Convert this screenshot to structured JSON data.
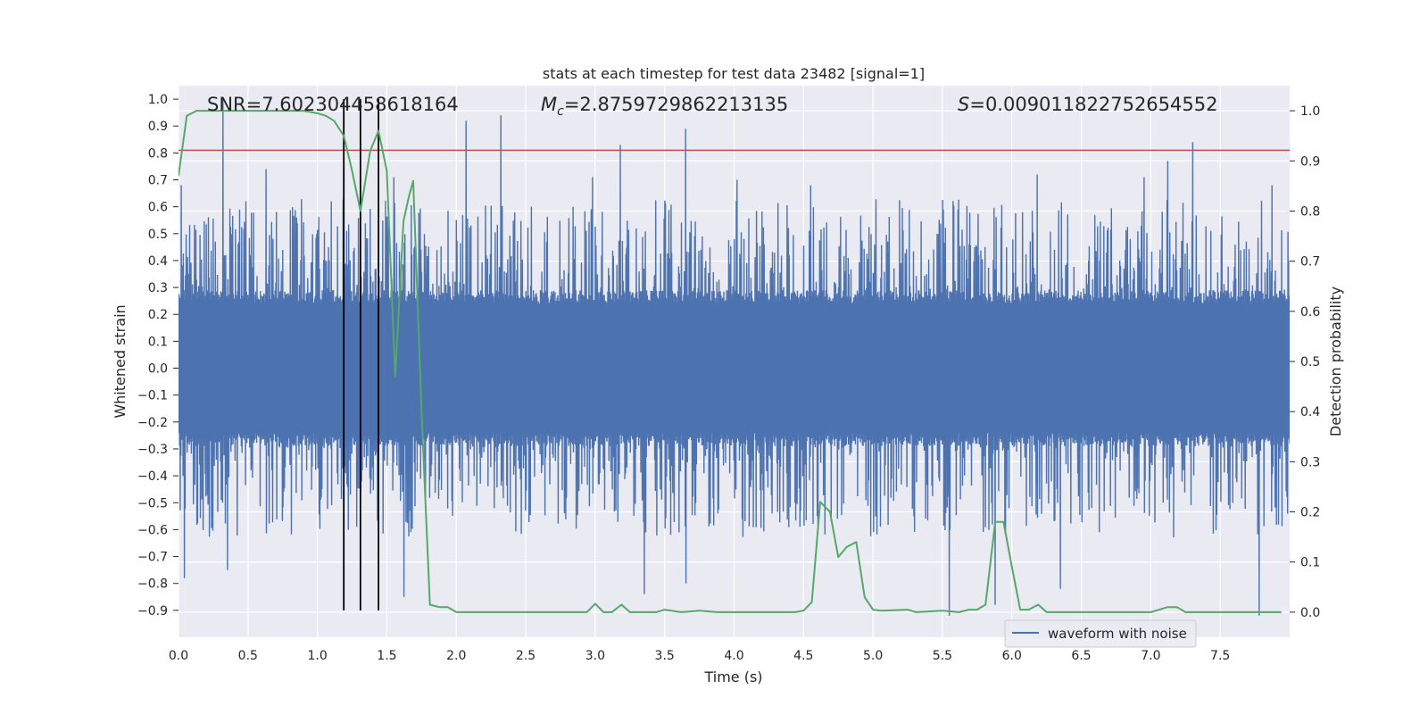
{
  "chart_data": {
    "type": "line",
    "title": "stats at each timestep for test data 23482 [signal=1]",
    "xlabel": "Time (s)",
    "ylabel": "Whitened strain",
    "ylabel_right": "Detection probability",
    "xlim": [
      0,
      8
    ],
    "ylim": [
      -1.0,
      1.05
    ],
    "ylim_right": [
      -0.05,
      1.05
    ],
    "x_ticks": [
      0.0,
      0.5,
      1.0,
      1.5,
      2.0,
      2.5,
      3.0,
      3.5,
      4.0,
      4.5,
      5.0,
      5.5,
      6.0,
      6.5,
      7.0,
      7.5
    ],
    "x_tick_labels": [
      "0.0",
      "0.5",
      "1.0",
      "1.5",
      "2.0",
      "2.5",
      "3.0",
      "3.5",
      "4.0",
      "4.5",
      "5.0",
      "5.5",
      "6.0",
      "6.5",
      "7.0",
      "7.5"
    ],
    "y_ticks": [
      1.0,
      0.9,
      0.8,
      0.7,
      0.6,
      0.5,
      0.4,
      0.3,
      0.2,
      0.1,
      0.0,
      -0.1,
      -0.2,
      -0.3,
      -0.4,
      -0.5,
      -0.6,
      -0.7,
      -0.8,
      -0.9
    ],
    "y_tick_labels": [
      "1.0",
      "0.9",
      "0.8",
      "0.7",
      "0.6",
      "0.5",
      "0.4",
      "0.3",
      "0.2",
      "0.1",
      "0.0",
      "−0.1",
      "−0.2",
      "−0.3",
      "−0.4",
      "−0.5",
      "−0.6",
      "−0.7",
      "−0.8",
      "−0.9"
    ],
    "y_right_ticks": [
      1.0,
      0.9,
      0.8,
      0.7,
      0.6,
      0.5,
      0.4,
      0.3,
      0.2,
      0.1,
      0.0
    ],
    "y_right_tick_labels": [
      "1.0",
      "0.9",
      "0.8",
      "0.7",
      "0.6",
      "0.5",
      "0.4",
      "0.3",
      "0.2",
      "0.1",
      "0.0"
    ],
    "annotations": {
      "snr": "SNR=7.602304458618164",
      "mc_symbol": "M",
      "mc_sub": "c",
      "mc_value": "=2.8759729862213135",
      "s_symbol": "S",
      "s_value": "=0.009011822752654552"
    },
    "legend": {
      "label": "waveform with noise",
      "placement": "lower-right"
    },
    "threshold_line": {
      "y": 0.81,
      "color": "#c44e52"
    },
    "vlines": [
      {
        "x": 1.19,
        "y_from": -0.9,
        "y_to": 1.0
      },
      {
        "x": 1.31,
        "y_from": -0.9,
        "y_to": 1.0
      },
      {
        "x": 1.44,
        "y_from": -0.9,
        "y_to": 1.0
      }
    ],
    "series": [
      {
        "name": "waveform with noise",
        "color": "#4c72b0",
        "core_band": 0.24,
        "peaks": [
          {
            "x": 0.02,
            "y": 0.68
          },
          {
            "x": 0.04,
            "y": -0.78
          },
          {
            "x": 0.32,
            "y": 1.0
          },
          {
            "x": 0.35,
            "y": -0.75
          },
          {
            "x": 0.63,
            "y": 0.74
          },
          {
            "x": 1.1,
            "y": 0.62
          },
          {
            "x": 1.55,
            "y": 0.71
          },
          {
            "x": 1.62,
            "y": -0.85
          },
          {
            "x": 2.07,
            "y": 0.92
          },
          {
            "x": 2.32,
            "y": 0.94
          },
          {
            "x": 2.98,
            "y": 0.71
          },
          {
            "x": 3.18,
            "y": 0.83
          },
          {
            "x": 3.35,
            "y": -0.84
          },
          {
            "x": 3.65,
            "y": 0.89
          },
          {
            "x": 3.65,
            "y": -0.8
          },
          {
            "x": 4.02,
            "y": 0.7
          },
          {
            "x": 4.55,
            "y": 0.68
          },
          {
            "x": 5.55,
            "y": -0.92
          },
          {
            "x": 5.88,
            "y": -0.88
          },
          {
            "x": 6.18,
            "y": 0.72
          },
          {
            "x": 6.35,
            "y": -0.82
          },
          {
            "x": 6.95,
            "y": 0.71
          },
          {
            "x": 7.12,
            "y": 0.77
          },
          {
            "x": 7.3,
            "y": 0.84
          },
          {
            "x": 7.78,
            "y": -0.92
          },
          {
            "x": 7.87,
            "y": 0.68
          }
        ]
      },
      {
        "name": "Detection probability",
        "color": "#55a868",
        "axis": "right",
        "x": [
          0.0,
          0.06,
          0.13,
          0.25,
          0.5,
          0.75,
          0.9,
          1.0,
          1.06,
          1.12,
          1.19,
          1.25,
          1.31,
          1.38,
          1.44,
          1.5,
          1.56,
          1.62,
          1.66,
          1.69,
          1.75,
          1.81,
          1.88,
          1.94,
          2.0,
          2.5,
          2.75,
          2.81,
          2.94,
          3.0,
          3.06,
          3.12,
          3.19,
          3.25,
          3.31,
          3.44,
          3.5,
          3.62,
          3.75,
          3.88,
          4.0,
          4.44,
          4.5,
          4.56,
          4.62,
          4.69,
          4.75,
          4.81,
          4.88,
          4.94,
          5.0,
          5.06,
          5.25,
          5.31,
          5.5,
          5.62,
          5.69,
          5.75,
          5.81,
          5.88,
          5.94,
          6.0,
          6.06,
          6.12,
          6.19,
          6.25,
          7.0,
          7.12,
          7.19,
          7.25,
          7.5,
          7.88,
          7.94
        ],
        "y": [
          0.87,
          0.99,
          1.0,
          1.0,
          1.0,
          1.0,
          1.0,
          0.995,
          0.99,
          0.98,
          0.95,
          0.88,
          0.8,
          0.92,
          0.96,
          0.88,
          0.47,
          0.78,
          0.83,
          0.86,
          0.4,
          0.015,
          0.01,
          0.01,
          0.0,
          0.0,
          0.0,
          0.0,
          0.0,
          0.017,
          0.0,
          0.0,
          0.015,
          0.0,
          0.0,
          0.0,
          0.005,
          0.0,
          0.003,
          0.0,
          0.0,
          0.0,
          0.003,
          0.02,
          0.22,
          0.2,
          0.11,
          0.13,
          0.14,
          0.03,
          0.005,
          0.003,
          0.005,
          0.0,
          0.003,
          0.0,
          0.005,
          0.005,
          0.015,
          0.18,
          0.18,
          0.09,
          0.005,
          0.005,
          0.015,
          0.0,
          0.0,
          0.01,
          0.01,
          0.0,
          0.0,
          0.0,
          0.0
        ]
      }
    ]
  }
}
